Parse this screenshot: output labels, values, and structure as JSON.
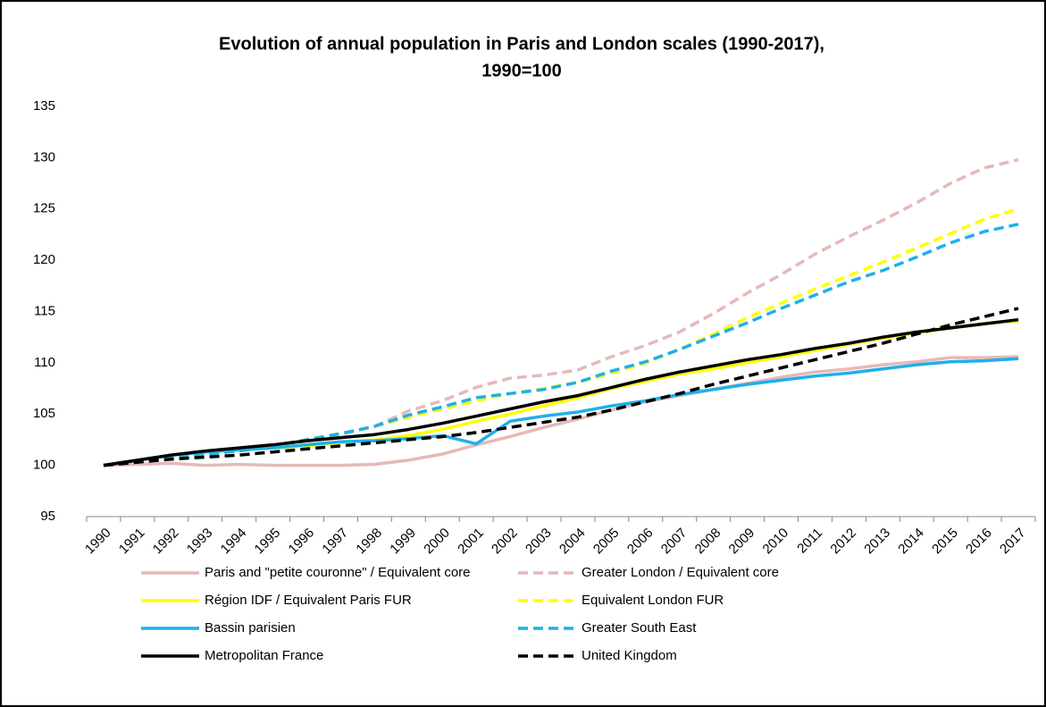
{
  "chart_data": {
    "type": "line",
    "title": [
      "Evolution of annual population in Paris and London scales (1990-2017),",
      "1990=100"
    ],
    "categories": [
      "1990",
      "1991",
      "1992",
      "1993",
      "1994",
      "1995",
      "1996",
      "1997",
      "1998",
      "1999",
      "2000",
      "2001",
      "2002",
      "2003",
      "2004",
      "2005",
      "2006",
      "2007",
      "2008",
      "2009",
      "2010",
      "2011",
      "2012",
      "2013",
      "2014",
      "2015",
      "2016",
      "2017"
    ],
    "ylim": [
      95,
      135
    ],
    "yticks": [
      95,
      100,
      105,
      110,
      115,
      120,
      125,
      130,
      135
    ],
    "grid": false,
    "legend": "bottom",
    "series": [
      {
        "name": "Paris and \"petite couronne\" / Equivalent core",
        "color": "#e6b9b8",
        "dashed": false,
        "values": [
          100,
          100.1,
          100.2,
          100.0,
          100.1,
          100.0,
          100.0,
          100.0,
          100.1,
          100.5,
          101.1,
          102.0,
          102.8,
          103.7,
          104.5,
          105.4,
          106.2,
          106.8,
          107.4,
          108.0,
          108.6,
          109.1,
          109.4,
          109.8,
          110.1,
          110.5,
          110.5,
          110.6
        ]
      },
      {
        "name": "Greater London / Equivalent core",
        "color": "#e6b9b8",
        "dashed": true,
        "values": [
          100,
          100.4,
          100.8,
          101.1,
          101.4,
          101.8,
          102.4,
          103.0,
          103.8,
          105.3,
          106.3,
          107.6,
          108.5,
          108.8,
          109.3,
          110.6,
          111.7,
          113.0,
          114.8,
          116.8,
          118.6,
          120.6,
          122.3,
          123.9,
          125.6,
          127.5,
          129.0,
          129.8
        ]
      },
      {
        "name": "Région IDF / Equivalent Paris FUR",
        "color": "#ffff00",
        "dashed": false,
        "values": [
          100,
          100.5,
          101.0,
          101.3,
          101.5,
          101.7,
          101.9,
          102.2,
          102.5,
          102.9,
          103.5,
          104.3,
          105.0,
          105.8,
          106.6,
          107.5,
          108.2,
          108.9,
          109.4,
          110.0,
          110.6,
          111.2,
          111.8,
          112.4,
          112.9,
          113.4,
          113.8,
          114.1
        ]
      },
      {
        "name": "Equivalent London FUR",
        "color": "#ffff00",
        "dashed": true,
        "values": [
          100,
          100.4,
          100.8,
          101.1,
          101.4,
          101.8,
          102.5,
          103.1,
          103.8,
          104.7,
          105.5,
          106.3,
          107.0,
          107.5,
          108.1,
          109.0,
          110.0,
          111.3,
          112.8,
          114.4,
          115.8,
          117.2,
          118.5,
          119.8,
          121.2,
          122.6,
          124.0,
          125.0
        ]
      },
      {
        "name": "Bassin parisien",
        "color": "#1fb0e8",
        "dashed": false,
        "values": [
          100,
          100.5,
          101.0,
          101.3,
          101.5,
          101.7,
          102.0,
          102.3,
          102.4,
          102.6,
          102.9,
          102.1,
          104.3,
          104.8,
          105.2,
          105.8,
          106.3,
          106.9,
          107.4,
          107.9,
          108.3,
          108.7,
          109.0,
          109.4,
          109.8,
          110.1,
          110.2,
          110.4
        ]
      },
      {
        "name": "Greater South East",
        "color": "#1fb0e8",
        "dashed": true,
        "values": [
          100,
          100.4,
          100.8,
          101.1,
          101.4,
          101.9,
          102.5,
          103.1,
          103.8,
          104.9,
          105.7,
          106.6,
          107.0,
          107.4,
          108.1,
          109.2,
          110.1,
          111.3,
          112.6,
          113.9,
          115.3,
          116.6,
          117.9,
          119.0,
          120.3,
          121.7,
          122.8,
          123.5
        ]
      },
      {
        "name": "Metropolitan France",
        "color": "#000000",
        "dashed": false,
        "values": [
          100,
          100.5,
          101.0,
          101.4,
          101.7,
          102.0,
          102.4,
          102.7,
          103.0,
          103.5,
          104.1,
          104.8,
          105.5,
          106.2,
          106.8,
          107.6,
          108.4,
          109.1,
          109.7,
          110.3,
          110.8,
          111.4,
          111.9,
          112.5,
          113.0,
          113.4,
          113.8,
          114.2
        ]
      },
      {
        "name": "United Kingdom",
        "color": "#000000",
        "dashed": true,
        "values": [
          100,
          100.3,
          100.6,
          100.8,
          101.0,
          101.3,
          101.6,
          101.9,
          102.2,
          102.5,
          102.8,
          103.2,
          103.7,
          104.2,
          104.7,
          105.4,
          106.2,
          107.0,
          107.9,
          108.7,
          109.5,
          110.3,
          111.1,
          111.9,
          112.8,
          113.7,
          114.5,
          115.3
        ]
      }
    ]
  }
}
